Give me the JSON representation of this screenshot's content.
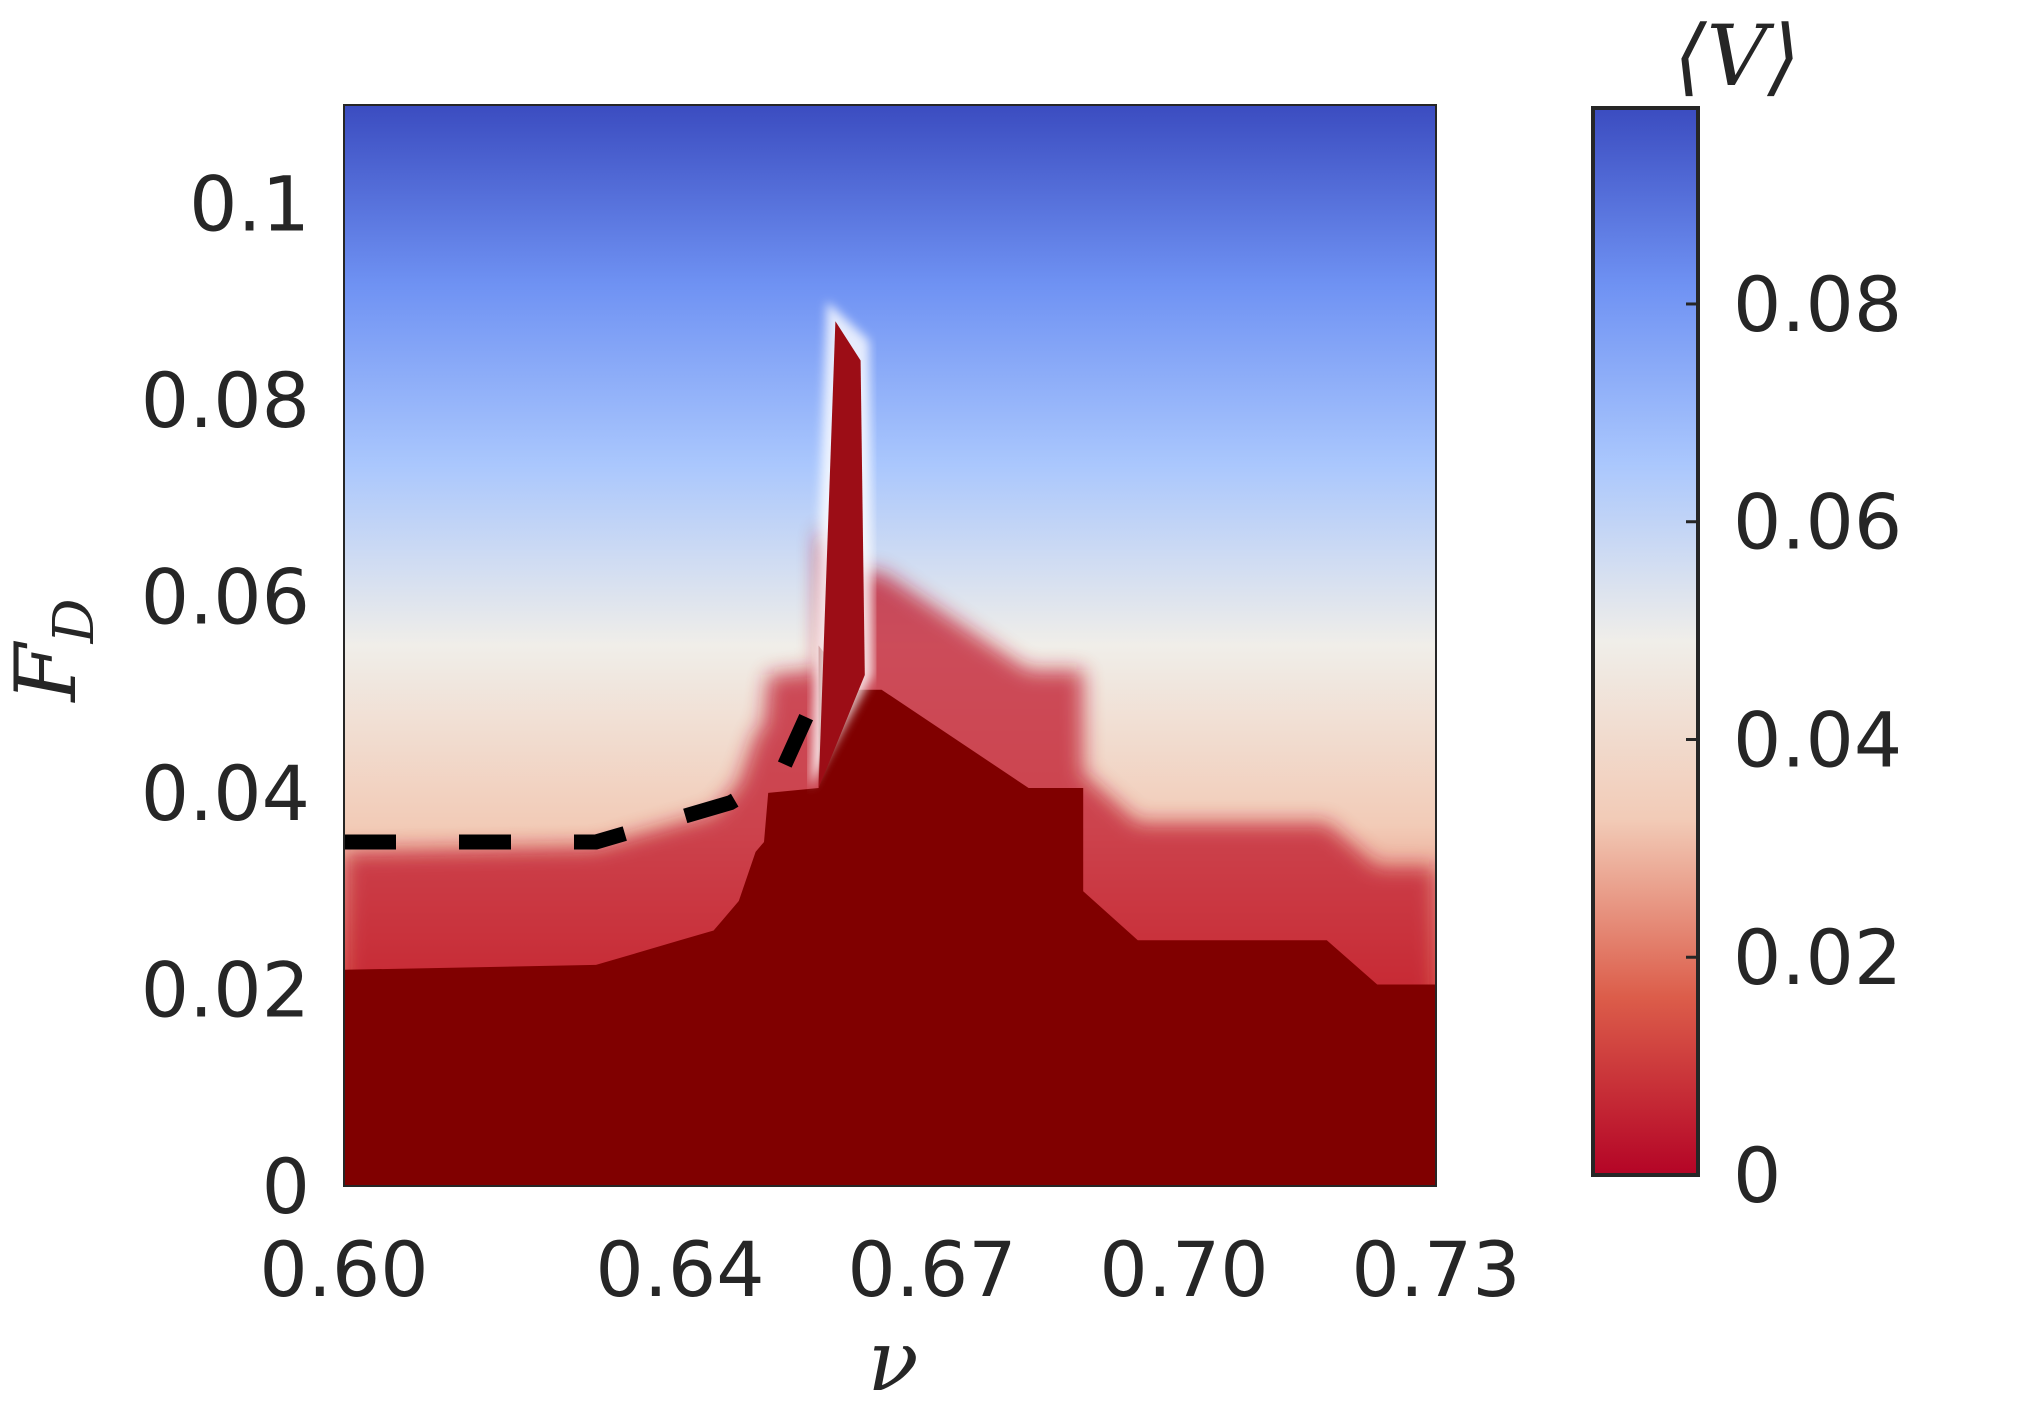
{
  "chart_data": {
    "type": "heatmap",
    "title": "",
    "xlabel": "ν",
    "ylabel": "F",
    "ylabel_subscript": "D",
    "colorbar_label": "⟨V⟩",
    "xlim": [
      0.6,
      0.73
    ],
    "ylim": [
      0,
      0.11
    ],
    "x_ticks": [
      0.6,
      0.64,
      0.67,
      0.7,
      0.73
    ],
    "x_tick_labels": [
      "0.60",
      "0.64",
      "0.67",
      "0.70",
      "0.73"
    ],
    "y_ticks": [
      0,
      0.02,
      0.04,
      0.06,
      0.08,
      0.1
    ],
    "y_tick_labels": [
      "0",
      "0.02",
      "0.04",
      "0.06",
      "0.08",
      "0.1"
    ],
    "colorbar_range": [
      0,
      0.098
    ],
    "colorbar_ticks": [
      0,
      0.02,
      0.04,
      0.06,
      0.08
    ],
    "colorbar_tick_labels": [
      "0",
      "0.02",
      "0.04",
      "0.06",
      "0.08"
    ],
    "colormap": [
      "#b40426",
      "#dc5d4a",
      "#f2cbb7",
      "#f0eee9",
      "#aac7fd",
      "#6f92f3",
      "#3b4cc0"
    ],
    "pinned_color": "#800000",
    "pinned_boundary": [
      [
        0.6,
        0.022
      ],
      [
        0.63,
        0.0225
      ],
      [
        0.634,
        0.0235
      ],
      [
        0.64,
        0.025
      ],
      [
        0.644,
        0.026
      ],
      [
        0.645,
        0.027
      ],
      [
        0.647,
        0.029
      ],
      [
        0.649,
        0.034
      ],
      [
        0.65,
        0.035
      ],
      [
        0.6505,
        0.04
      ],
      [
        0.6565,
        0.0405
      ],
      [
        0.6565,
        0.055
      ],
      [
        0.6605,
        0.0505
      ],
      [
        0.664,
        0.0505
      ],
      [
        0.6815,
        0.0405
      ],
      [
        0.688,
        0.0405
      ],
      [
        0.688,
        0.03
      ],
      [
        0.6945,
        0.025
      ],
      [
        0.717,
        0.025
      ],
      [
        0.723,
        0.0205
      ],
      [
        0.73,
        0.0205
      ]
    ],
    "spike": [
      [
        0.6565,
        0.0405
      ],
      [
        0.6585,
        0.088
      ],
      [
        0.6615,
        0.084
      ],
      [
        0.662,
        0.052
      ]
    ],
    "dashed_line": [
      [
        0.6,
        0.035
      ],
      [
        0.63,
        0.035
      ],
      [
        0.636,
        0.0365
      ],
      [
        0.646,
        0.039
      ],
      [
        0.652,
        0.042
      ],
      [
        0.6565,
        0.0505
      ]
    ]
  }
}
